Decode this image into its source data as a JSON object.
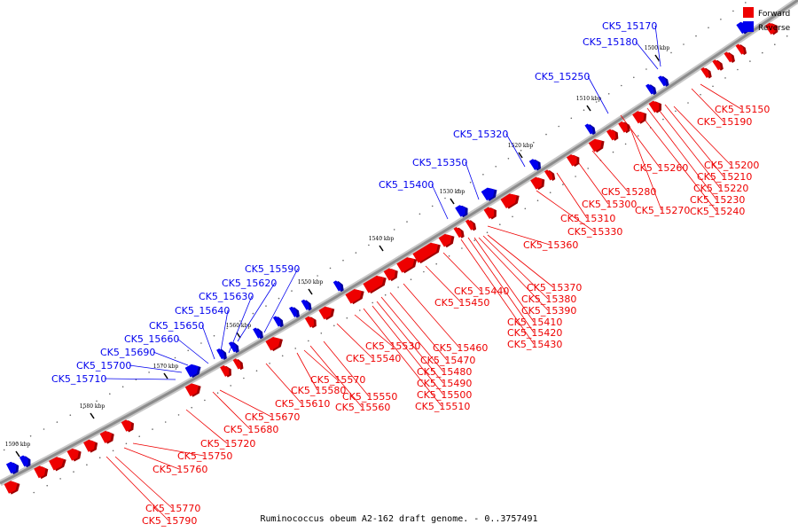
{
  "caption": "Ruminococcus obeum A2-162 draft genome. - 0..3757491",
  "legend": [
    {
      "label": "Forward",
      "color": "#ee0000"
    },
    {
      "label": "Reverse",
      "color": "#0000ee"
    }
  ],
  "colors": {
    "forward": "#ee0000",
    "reverse": "#0000ee",
    "backbone": "#8c8c8c",
    "forward_shadow": "#9e0000",
    "reverse_shadow": "#00009e"
  },
  "kbp_ticks": [
    "1500 kbp",
    "1510 kbp",
    "1520 kbp",
    "1530 kbp",
    "1540 kbp",
    "1550 kbp",
    "1560 kbp",
    "1570 kbp",
    "1580 kbp",
    "1590 kbp"
  ],
  "forward_labels": [
    "CK5_15150",
    "CK5_15190",
    "CK5_15200",
    "CK5_15210",
    "CK5_15220",
    "CK5_15230",
    "CK5_15240",
    "CK5_15260",
    "CK5_15270",
    "CK5_15280",
    "CK5_15300",
    "CK5_15310",
    "CK5_15330",
    "CK5_15360",
    "CK5_15370",
    "CK5_15380",
    "CK5_15390",
    "CK5_15410",
    "CK5_15420",
    "CK5_15430",
    "CK5_15440",
    "CK5_15450",
    "CK5_15460",
    "CK5_15470",
    "CK5_15480",
    "CK5_15490",
    "CK5_15500",
    "CK5_15510",
    "CK5_15530",
    "CK5_15540",
    "CK5_15550",
    "CK5_15560",
    "CK5_15570",
    "CK5_15580",
    "CK5_15610",
    "CK5_15670",
    "CK5_15680",
    "CK5_15720",
    "CK5_15750",
    "CK5_15760",
    "CK5_15770",
    "CK5_15790"
  ],
  "reverse_labels": [
    "CK5_15170",
    "CK5_15180",
    "CK5_15250",
    "CK5_15320",
    "CK5_15350",
    "CK5_15400",
    "CK5_15590",
    "CK5_15620",
    "CK5_15630",
    "CK5_15640",
    "CK5_15650",
    "CK5_15660",
    "CK5_15690",
    "CK5_15700",
    "CK5_15710"
  ]
}
